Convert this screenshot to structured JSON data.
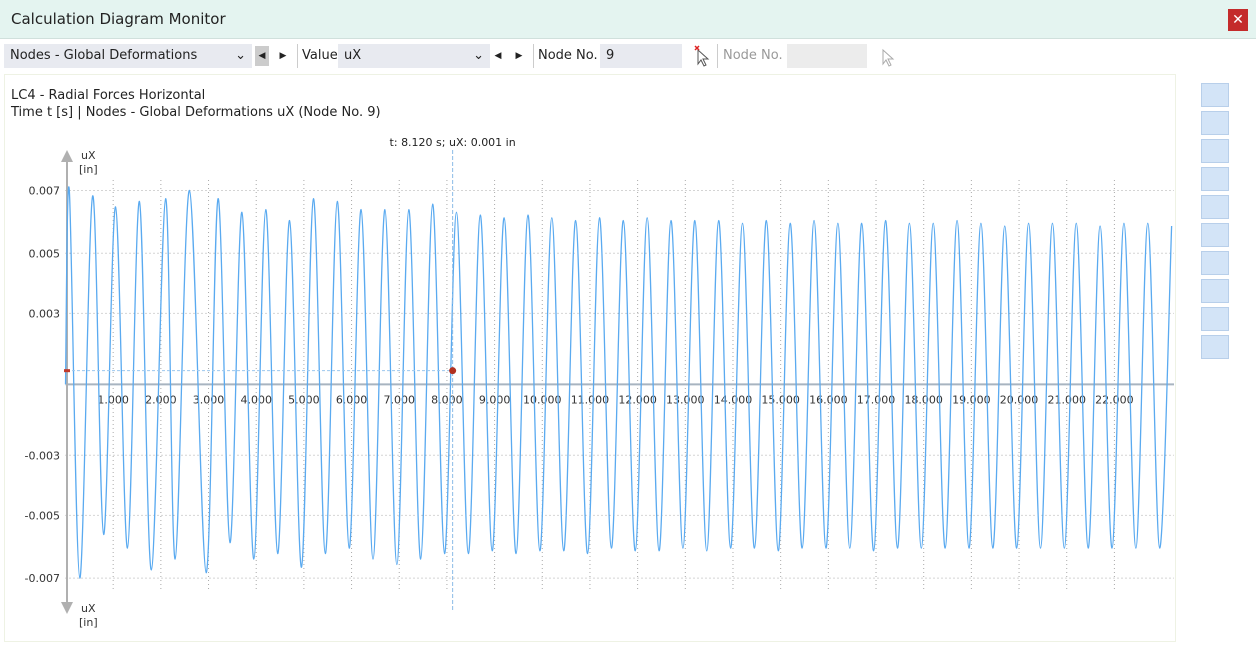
{
  "window": {
    "title": "Calculation Diagram Monitor"
  },
  "toolbar": {
    "result_type": "Nodes - Global Deformations",
    "value_label": "Value",
    "value": "uX",
    "node_label": "Node No.",
    "node_value": "9",
    "node_label_2": "Node No."
  },
  "chart_data": {
    "type": "line",
    "title": "LC4 - Radial Forces Horizontal",
    "subtitle": "Time t [s] | Nodes - Global Deformations uX (Node No. 9)",
    "y_axis_label": "uX",
    "y_axis_unit": "[in]",
    "cursor": {
      "label": "t: 8.120 s; uX: 0.001 in",
      "x": 8.12,
      "y": 0.0005
    },
    "xlim": [
      0,
      23.25
    ],
    "ylim": [
      -0.0079,
      0.0084
    ],
    "grid": true,
    "xticks": [
      {
        "value": 1,
        "label": "1.000"
      },
      {
        "value": 2,
        "label": "2.000"
      },
      {
        "value": 3,
        "label": "3.000"
      },
      {
        "value": 4,
        "label": "4.000"
      },
      {
        "value": 5,
        "label": "5.000"
      },
      {
        "value": 6,
        "label": "6.000"
      },
      {
        "value": 7,
        "label": "7.000"
      },
      {
        "value": 8,
        "label": "8.000"
      },
      {
        "value": 9,
        "label": "9.000"
      },
      {
        "value": 10,
        "label": "10.000"
      },
      {
        "value": 11,
        "label": "11.000"
      },
      {
        "value": 12,
        "label": "12.000"
      },
      {
        "value": 13,
        "label": "13.000"
      },
      {
        "value": 14,
        "label": "14.000"
      },
      {
        "value": 15,
        "label": "15.000"
      },
      {
        "value": 16,
        "label": "16.000"
      },
      {
        "value": 17,
        "label": "17.000"
      },
      {
        "value": 18,
        "label": "18.000"
      },
      {
        "value": 19,
        "label": "19.000"
      },
      {
        "value": 20,
        "label": "20.000"
      },
      {
        "value": 21,
        "label": "21.000"
      },
      {
        "value": 22,
        "label": "22.000"
      }
    ],
    "yticks": [
      {
        "value": 0.0071,
        "label": "0.007"
      },
      {
        "value": 0.0048,
        "label": "0.005"
      },
      {
        "value": 0.0026,
        "label": "0.003"
      },
      {
        "value": -0.0026,
        "label": "-0.003"
      },
      {
        "value": -0.0048,
        "label": "-0.005"
      },
      {
        "value": -0.0071,
        "label": "-0.007"
      }
    ],
    "x": [
      0,
      0.08,
      0.3,
      0.57,
      0.8,
      1.05,
      1.3,
      1.55,
      1.8,
      2.1,
      2.3,
      2.6,
      2.95,
      3.2,
      3.45,
      3.7,
      3.95,
      4.2,
      4.45,
      4.7,
      4.95,
      5.2,
      5.45,
      5.7,
      5.95,
      6.2,
      6.45,
      6.7,
      6.95,
      7.2,
      7.45,
      7.7,
      7.95,
      8.2,
      8.45,
      8.7,
      8.95,
      9.2,
      9.45,
      9.7,
      9.95,
      10.2,
      10.45,
      10.7,
      10.95,
      11.2,
      11.45,
      11.7,
      11.95,
      12.2,
      12.45,
      12.7,
      12.95,
      13.2,
      13.45,
      13.7,
      13.95,
      14.2,
      14.45,
      14.7,
      14.95,
      15.2,
      15.45,
      15.7,
      15.95,
      16.2,
      16.45,
      16.7,
      16.95,
      17.2,
      17.45,
      17.7,
      17.95,
      18.2,
      18.45,
      18.7,
      18.95,
      19.2,
      19.45,
      19.7,
      19.95,
      20.2,
      20.45,
      20.7,
      20.95,
      21.2,
      21.45,
      21.7,
      21.95,
      22.2,
      22.45,
      22.7,
      22.95,
      23.2
    ],
    "series": [
      {
        "name": "uX",
        "color": "#5aaaf0",
        "values": [
          0,
          0.0071,
          -0.0071,
          0.0069,
          -0.0055,
          0.0065,
          -0.006,
          0.0067,
          -0.0068,
          0.0068,
          -0.0064,
          0.0071,
          -0.0069,
          0.0068,
          -0.0058,
          0.0063,
          -0.0064,
          0.0064,
          -0.0062,
          0.006,
          -0.0067,
          0.0068,
          -0.0062,
          0.0067,
          -0.006,
          0.0064,
          -0.0064,
          0.0064,
          -0.0066,
          0.0064,
          -0.0064,
          0.0066,
          -0.0062,
          0.0063,
          -0.0062,
          0.0062,
          -0.0061,
          0.0061,
          -0.0062,
          0.0062,
          -0.0061,
          0.0061,
          -0.0061,
          0.006,
          -0.0062,
          0.0061,
          -0.006,
          0.006,
          -0.0061,
          0.0061,
          -0.0061,
          0.006,
          -0.006,
          0.006,
          -0.0061,
          0.006,
          -0.006,
          0.0059,
          -0.006,
          0.006,
          -0.0061,
          0.0059,
          -0.006,
          0.006,
          -0.006,
          0.0059,
          -0.006,
          0.0059,
          -0.0061,
          0.006,
          -0.006,
          0.0059,
          -0.006,
          0.0059,
          -0.006,
          0.006,
          -0.006,
          0.0059,
          -0.006,
          0.0058,
          -0.006,
          0.0059,
          -0.006,
          0.0059,
          -0.006,
          0.0059,
          -0.006,
          0.0058,
          -0.006,
          0.0059,
          -0.006,
          0.0059,
          -0.006,
          0.0058
        ]
      }
    ]
  }
}
